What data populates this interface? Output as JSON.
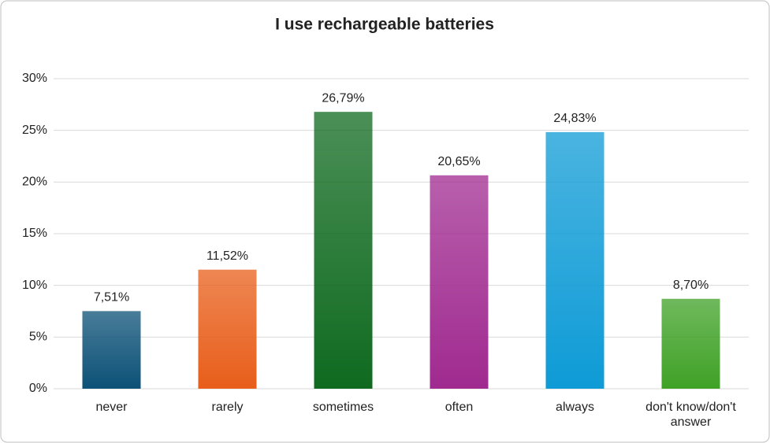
{
  "chart_data": {
    "type": "bar",
    "title": "I use rechargeable batteries",
    "categories": [
      "never",
      "rarely",
      "sometimes",
      "often",
      "always",
      "don't know/don't answer"
    ],
    "values": [
      7.51,
      11.52,
      26.79,
      20.65,
      24.83,
      8.7
    ],
    "value_labels": [
      "7,51%",
      "11,52%",
      "26,79%",
      "20,65%",
      "24,83%",
      "8,70%"
    ],
    "colors": [
      "#0c5177",
      "#e85e1a",
      "#0f6a1f",
      "#a02a90",
      "#0e9bd6",
      "#3fa126"
    ],
    "ylim": [
      0,
      30
    ],
    "yticks": [
      {
        "value": 0,
        "label": "0%"
      },
      {
        "value": 5,
        "label": "5%"
      },
      {
        "value": 10,
        "label": "10%"
      },
      {
        "value": 15,
        "label": "15%"
      },
      {
        "value": 20,
        "label": "20%"
      },
      {
        "value": 25,
        "label": "25%"
      },
      {
        "value": 30,
        "label": "30%"
      }
    ],
    "grid": true
  }
}
